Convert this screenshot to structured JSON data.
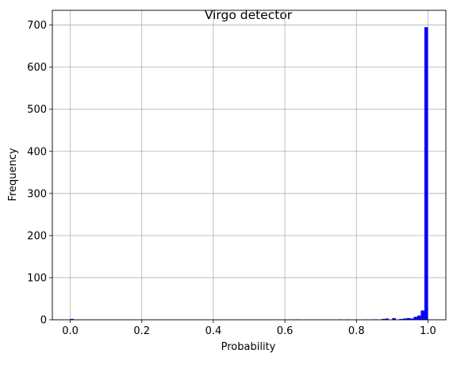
{
  "chart_data": {
    "type": "bar",
    "title": "Virgo detector",
    "xlabel": "Probability",
    "ylabel": "Frequency",
    "xlim": [
      -0.05,
      1.05
    ],
    "ylim": [
      0,
      735
    ],
    "xticks": [
      0.0,
      0.2,
      0.4,
      0.6,
      0.8,
      1.0
    ],
    "xtick_labels": [
      "0.0",
      "0.2",
      "0.4",
      "0.6",
      "0.8",
      "1.0"
    ],
    "yticks": [
      0,
      100,
      200,
      300,
      400,
      500,
      600,
      700
    ],
    "ytick_labels": [
      "0",
      "100",
      "200",
      "300",
      "400",
      "500",
      "600",
      "700"
    ],
    "grid": true,
    "bar_color": "#0000ff",
    "bin_width": 0.01,
    "bins": [
      {
        "x": 0.0,
        "count": 2
      },
      {
        "x": 0.63,
        "count": 1
      },
      {
        "x": 0.75,
        "count": 1
      },
      {
        "x": 0.77,
        "count": 1
      },
      {
        "x": 0.82,
        "count": 1
      },
      {
        "x": 0.84,
        "count": 1
      },
      {
        "x": 0.85,
        "count": 1
      },
      {
        "x": 0.87,
        "count": 2
      },
      {
        "x": 0.88,
        "count": 3
      },
      {
        "x": 0.9,
        "count": 4
      },
      {
        "x": 0.92,
        "count": 2
      },
      {
        "x": 0.93,
        "count": 3
      },
      {
        "x": 0.94,
        "count": 4
      },
      {
        "x": 0.95,
        "count": 3
      },
      {
        "x": 0.96,
        "count": 7
      },
      {
        "x": 0.97,
        "count": 10
      },
      {
        "x": 0.98,
        "count": 22
      },
      {
        "x": 0.99,
        "count": 695
      }
    ]
  }
}
